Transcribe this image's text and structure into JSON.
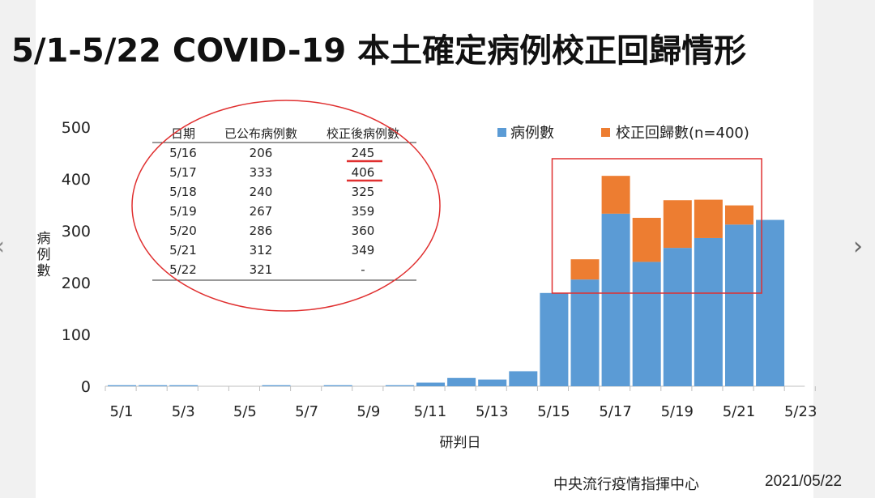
{
  "title": "5/1-5/22 COVID-19 本土確定病例校正回歸情形",
  "footer": {
    "org": "中央流行疫情指揮中心",
    "date": "2021/05/22"
  },
  "nav": {
    "prev_icon": "chevron-left-icon",
    "next_icon": "chevron-right-icon"
  },
  "chart_data": {
    "type": "bar",
    "stacked": true,
    "title": "",
    "xlabel": "研判日",
    "ylabel": "病例數",
    "ylim": [
      0,
      500
    ],
    "yticks": [
      0,
      100,
      200,
      300,
      400,
      500
    ],
    "xticks": [
      "5/1",
      "5/3",
      "5/5",
      "5/7",
      "5/9",
      "5/11",
      "5/13",
      "5/15",
      "5/17",
      "5/19",
      "5/21",
      "5/23"
    ],
    "categories": [
      "5/1",
      "5/2",
      "5/3",
      "5/4",
      "5/5",
      "5/6",
      "5/7",
      "5/8",
      "5/9",
      "5/10",
      "5/11",
      "5/12",
      "5/13",
      "5/14",
      "5/15",
      "5/16",
      "5/17",
      "5/18",
      "5/19",
      "5/20",
      "5/21",
      "5/22"
    ],
    "series": [
      {
        "name": "病例數",
        "color": "#5b9bd5",
        "values": [
          2,
          2,
          2,
          0,
          0,
          2,
          0,
          2,
          0,
          2,
          7,
          16,
          13,
          29,
          180,
          206,
          333,
          240,
          267,
          286,
          312,
          321
        ]
      },
      {
        "name": "校正回歸數(n=400)",
        "color": "#ed7d31",
        "values": [
          0,
          0,
          0,
          0,
          0,
          0,
          0,
          0,
          0,
          0,
          0,
          0,
          0,
          0,
          0,
          39,
          73,
          85,
          92,
          74,
          37,
          0
        ]
      }
    ],
    "legend_position": "top-right",
    "grid": false,
    "highlight_box": {
      "color": "#e03030",
      "from": "5/16",
      "to": "5/21"
    },
    "inset_table": {
      "columns": [
        "日期",
        "已公布病例數",
        "校正後病例數"
      ],
      "rows": [
        [
          "5/16",
          "206",
          "245"
        ],
        [
          "5/17",
          "333",
          "406"
        ],
        [
          "5/18",
          "240",
          "325"
        ],
        [
          "5/19",
          "267",
          "359"
        ],
        [
          "5/20",
          "286",
          "360"
        ],
        [
          "5/21",
          "312",
          "349"
        ],
        [
          "5/22",
          "321",
          "-"
        ]
      ],
      "underlined": [
        "245",
        "406"
      ]
    }
  }
}
